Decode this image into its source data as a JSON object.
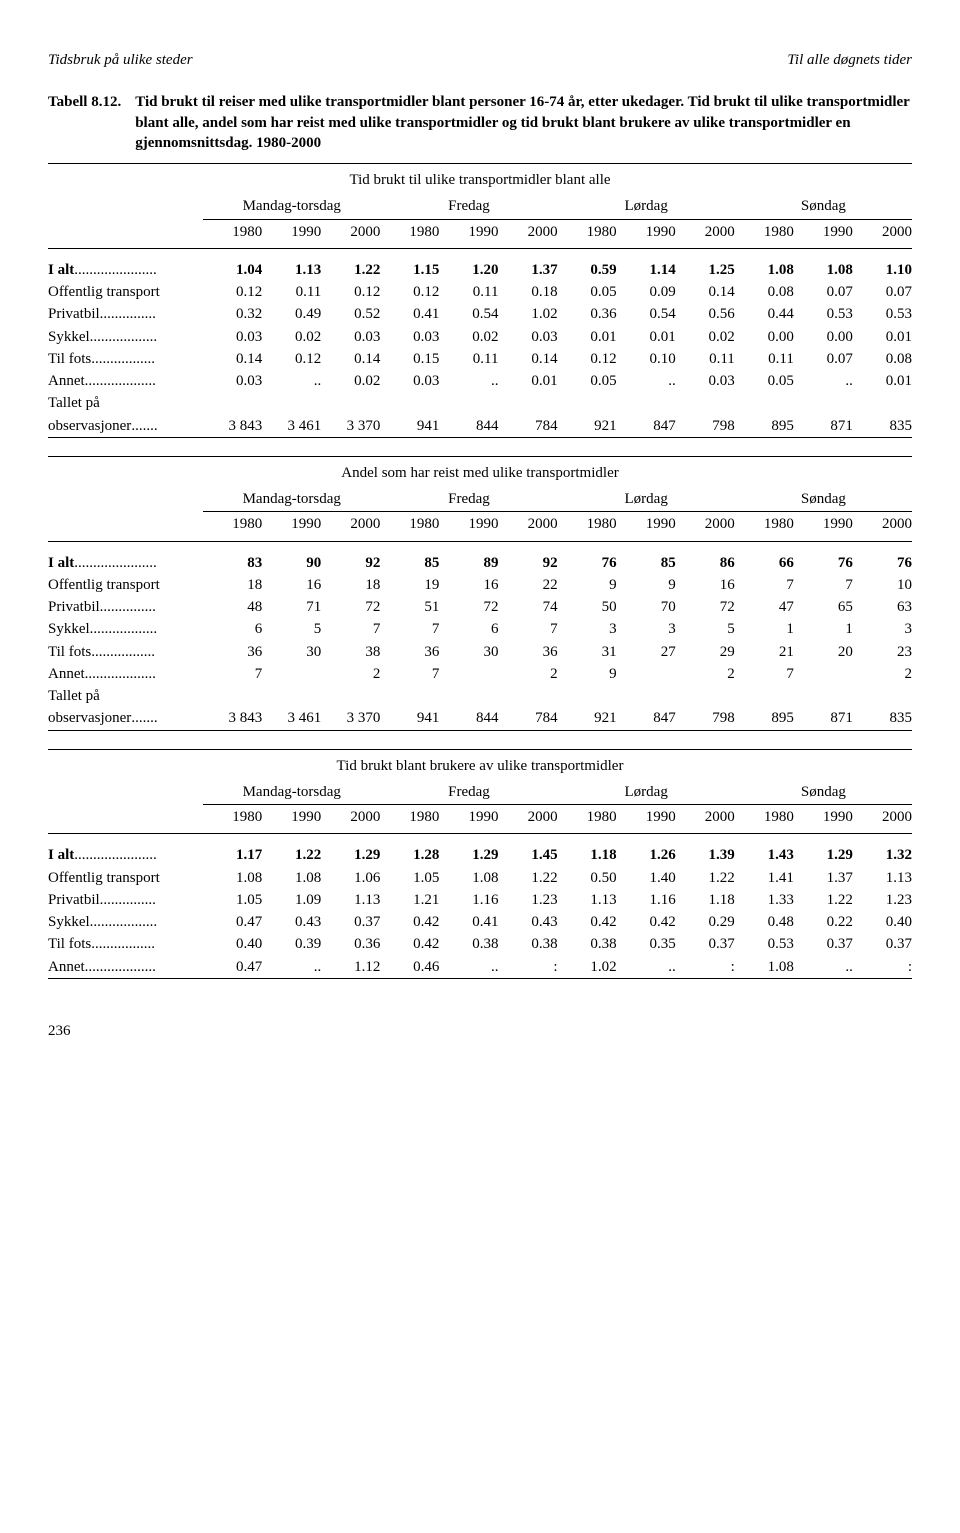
{
  "header": {
    "left": "Tidsbruk på ulike steder",
    "right": "Til alle døgnets tider"
  },
  "caption": {
    "label": "Tabell 8.12.",
    "title": "Tid brukt til reiser med ulike transportmidler blant personer 16-74 år, etter ukedager. Tid brukt til ulike transportmidler blant alle, andel som har reist med ulike transportmidler og tid brukt blant brukere av ulike transportmidler en gjennomsnittsdag. 1980-2000"
  },
  "days": [
    "Mandag-torsdag",
    "Fredag",
    "Lørdag",
    "Søndag"
  ],
  "years": [
    "1980",
    "1990",
    "2000",
    "1980",
    "1990",
    "2000",
    "1980",
    "1990",
    "2000",
    "1980",
    "1990",
    "2000"
  ],
  "sections": [
    {
      "subhead": "Tid brukt til ulike transportmidler blant alle",
      "rows": [
        {
          "stub": "I alt",
          "dots": "......................",
          "bold": true,
          "vals": [
            "1.04",
            "1.13",
            "1.22",
            "1.15",
            "1.20",
            "1.37",
            "0.59",
            "1.14",
            "1.25",
            "1.08",
            "1.08",
            "1.10"
          ]
        },
        {
          "stub": "Offentlig transport",
          "dots": "",
          "vals": [
            "0.12",
            "0.11",
            "0.12",
            "0.12",
            "0.11",
            "0.18",
            "0.05",
            "0.09",
            "0.14",
            "0.08",
            "0.07",
            "0.07"
          ]
        },
        {
          "stub": "Privatbil",
          "dots": "...............",
          "vals": [
            "0.32",
            "0.49",
            "0.52",
            "0.41",
            "0.54",
            "1.02",
            "0.36",
            "0.54",
            "0.56",
            "0.44",
            "0.53",
            "0.53"
          ]
        },
        {
          "stub": "Sykkel",
          "dots": "..................",
          "vals": [
            "0.03",
            "0.02",
            "0.03",
            "0.03",
            "0.02",
            "0.03",
            "0.01",
            "0.01",
            "0.02",
            "0.00",
            "0.00",
            "0.01"
          ]
        },
        {
          "stub": "Til fots",
          "dots": ".................",
          "vals": [
            "0.14",
            "0.12",
            "0.14",
            "0.15",
            "0.11",
            "0.14",
            "0.12",
            "0.10",
            "0.11",
            "0.11",
            "0.07",
            "0.08"
          ]
        },
        {
          "stub": "Annet",
          "dots": "...................",
          "vals": [
            "0.03",
            "..",
            "0.02",
            "0.03",
            "..",
            "0.01",
            "0.05",
            "..",
            "0.03",
            "0.05",
            "..",
            "0.01"
          ]
        },
        {
          "stub": "Tallet på",
          "dots": "",
          "vals": [
            "",
            "",
            "",
            "",
            "",
            "",
            "",
            "",
            "",
            "",
            "",
            ""
          ]
        },
        {
          "stub": "observasjoner",
          "dots": ".......",
          "vals": [
            "3 843",
            "3 461",
            "3 370",
            "941",
            "844",
            "784",
            "921",
            "847",
            "798",
            "895",
            "871",
            "835"
          ]
        }
      ]
    },
    {
      "subhead": "Andel som har reist med ulike transportmidler",
      "rows": [
        {
          "stub": "I alt",
          "dots": "......................",
          "bold": true,
          "vals": [
            "83",
            "90",
            "92",
            "85",
            "89",
            "92",
            "76",
            "85",
            "86",
            "66",
            "76",
            "76"
          ]
        },
        {
          "stub": "Offentlig transport",
          "dots": "",
          "vals": [
            "18",
            "16",
            "18",
            "19",
            "16",
            "22",
            "9",
            "9",
            "16",
            "7",
            "7",
            "10"
          ]
        },
        {
          "stub": "Privatbil",
          "dots": "...............",
          "vals": [
            "48",
            "71",
            "72",
            "51",
            "72",
            "74",
            "50",
            "70",
            "72",
            "47",
            "65",
            "63"
          ]
        },
        {
          "stub": "Sykkel",
          "dots": "..................",
          "vals": [
            "6",
            "5",
            "7",
            "7",
            "6",
            "7",
            "3",
            "3",
            "5",
            "1",
            "1",
            "3"
          ]
        },
        {
          "stub": "Til fots",
          "dots": ".................",
          "vals": [
            "36",
            "30",
            "38",
            "36",
            "30",
            "36",
            "31",
            "27",
            "29",
            "21",
            "20",
            "23"
          ]
        },
        {
          "stub": "Annet",
          "dots": "...................",
          "vals": [
            "7",
            "",
            "2",
            "7",
            "",
            "2",
            "9",
            "",
            "2",
            "7",
            "",
            "2"
          ]
        },
        {
          "stub": "Tallet på",
          "dots": "",
          "vals": [
            "",
            "",
            "",
            "",
            "",
            "",
            "",
            "",
            "",
            "",
            "",
            ""
          ]
        },
        {
          "stub": "observasjoner",
          "dots": ".......",
          "vals": [
            "3 843",
            "3 461",
            "3 370",
            "941",
            "844",
            "784",
            "921",
            "847",
            "798",
            "895",
            "871",
            "835"
          ]
        }
      ]
    },
    {
      "subhead": "Tid brukt blant brukere av ulike transportmidler",
      "rows": [
        {
          "stub": "I alt",
          "dots": "......................",
          "bold": true,
          "vals": [
            "1.17",
            "1.22",
            "1.29",
            "1.28",
            "1.29",
            "1.45",
            "1.18",
            "1.26",
            "1.39",
            "1.43",
            "1.29",
            "1.32"
          ]
        },
        {
          "stub": "Offentlig transport",
          "dots": "",
          "vals": [
            "1.08",
            "1.08",
            "1.06",
            "1.05",
            "1.08",
            "1.22",
            "0.50",
            "1.40",
            "1.22",
            "1.41",
            "1.37",
            "1.13"
          ]
        },
        {
          "stub": "Privatbil",
          "dots": "...............",
          "vals": [
            "1.05",
            "1.09",
            "1.13",
            "1.21",
            "1.16",
            "1.23",
            "1.13",
            "1.16",
            "1.18",
            "1.33",
            "1.22",
            "1.23"
          ]
        },
        {
          "stub": "Sykkel",
          "dots": "..................",
          "vals": [
            "0.47",
            "0.43",
            "0.37",
            "0.42",
            "0.41",
            "0.43",
            "0.42",
            "0.42",
            "0.29",
            "0.48",
            "0.22",
            "0.40"
          ]
        },
        {
          "stub": "Til fots",
          "dots": ".................",
          "vals": [
            "0.40",
            "0.39",
            "0.36",
            "0.42",
            "0.38",
            "0.38",
            "0.38",
            "0.35",
            "0.37",
            "0.53",
            "0.37",
            "0.37"
          ]
        },
        {
          "stub": "Annet",
          "dots": "...................",
          "vals": [
            "0.47",
            "..",
            "1.12",
            "0.46",
            "..",
            ":",
            "1.02",
            "..",
            ":",
            "1.08",
            "..",
            ":"
          ]
        }
      ]
    }
  ],
  "page_number": "236",
  "style": {
    "font_family": "Times New Roman",
    "font_size_pt": 11,
    "rule_color": "#000000",
    "background": "#ffffff",
    "text_color": "#000000"
  }
}
